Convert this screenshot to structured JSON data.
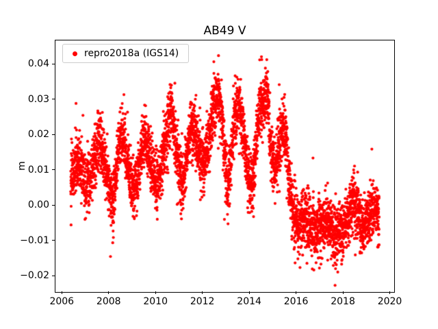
{
  "chart_data": {
    "type": "scatter",
    "title": "AB49 V",
    "xlabel": "",
    "ylabel": "m",
    "grid": false,
    "legend_position": "upper-left",
    "legend_label": "repro2018a (IGS14)",
    "marker_color": "#ff0000",
    "xlim": [
      2005.7,
      2020.16
    ],
    "ylim": [
      -0.0244,
      0.0468
    ],
    "xticks": [
      {
        "v": 2006,
        "label": "2006"
      },
      {
        "v": 2008,
        "label": "2008"
      },
      {
        "v": 2010,
        "label": "2010"
      },
      {
        "v": 2012,
        "label": "2012"
      },
      {
        "v": 2014,
        "label": "2014"
      },
      {
        "v": 2016,
        "label": "2016"
      },
      {
        "v": 2018,
        "label": "2018"
      },
      {
        "v": 2020,
        "label": "2020"
      }
    ],
    "yticks": [
      {
        "v": -0.02,
        "label": "−0.02"
      },
      {
        "v": -0.01,
        "label": "−0.01"
      },
      {
        "v": 0.0,
        "label": "0.00"
      },
      {
        "v": 0.01,
        "label": "0.01"
      },
      {
        "v": 0.02,
        "label": "0.02"
      },
      {
        "v": 0.03,
        "label": "0.03"
      },
      {
        "v": 0.04,
        "label": "0.04"
      }
    ],
    "series": [
      {
        "name": "repro2018a (IGS14)",
        "color": "#ff0000",
        "marker": "dot",
        "x_start": 2006.35,
        "x_end": 2019.52,
        "samples_per_year": 365,
        "noise_sigma": 0.0042,
        "outlier_rate": 0.015,
        "outlier_sigma": 0.007,
        "seasonal_mean_anchors": {
          "x": [
            2006.35,
            2006.6,
            2006.85,
            2007.0,
            2007.2,
            2007.45,
            2007.6,
            2007.85,
            2008.05,
            2008.15,
            2008.3,
            2008.5,
            2008.7,
            2008.9,
            2009.05,
            2009.25,
            2009.5,
            2009.7,
            2009.9,
            2010.05,
            2010.25,
            2010.5,
            2010.65,
            2010.85,
            2011.0,
            2011.15,
            2011.3,
            2011.5,
            2011.7,
            2011.9,
            2012.05,
            2012.2,
            2012.45,
            2012.6,
            2012.75,
            2012.95,
            2013.05,
            2013.15,
            2013.3,
            2013.5,
            2013.7,
            2013.9,
            2014.05,
            2014.2,
            2014.4,
            2014.6,
            2014.75,
            2014.9,
            2015.05,
            2015.2,
            2015.4,
            2015.55,
            2015.7,
            2015.9,
            2016.05,
            2016.2,
            2016.4,
            2016.6,
            2016.8,
            2017.0,
            2017.2,
            2017.4,
            2017.6,
            2017.8,
            2018.0,
            2018.2,
            2018.4,
            2018.6,
            2018.8,
            2019.0,
            2019.2,
            2019.4,
            2019.52
          ],
          "y": [
            0.008,
            0.013,
            0.01,
            0.005,
            0.008,
            0.016,
            0.018,
            0.011,
            0.002,
            -0.001,
            0.01,
            0.02,
            0.015,
            0.008,
            0.004,
            0.009,
            0.02,
            0.016,
            0.008,
            0.006,
            0.012,
            0.022,
            0.027,
            0.017,
            0.01,
            0.006,
            0.014,
            0.022,
            0.02,
            0.013,
            0.012,
            0.016,
            0.028,
            0.032,
            0.029,
            0.012,
            0.006,
            0.01,
            0.022,
            0.03,
            0.022,
            0.01,
            0.005,
            0.012,
            0.026,
            0.03,
            0.032,
            0.015,
            0.01,
            0.015,
            0.022,
            0.018,
            0.004,
            -0.004,
            -0.006,
            -0.004,
            -0.003,
            -0.006,
            -0.008,
            -0.007,
            -0.004,
            -0.005,
            -0.009,
            -0.007,
            -0.006,
            -0.003,
            0.002,
            -0.002,
            -0.006,
            -0.004,
            0.0,
            -0.001,
            -0.002
          ]
        }
      }
    ]
  }
}
